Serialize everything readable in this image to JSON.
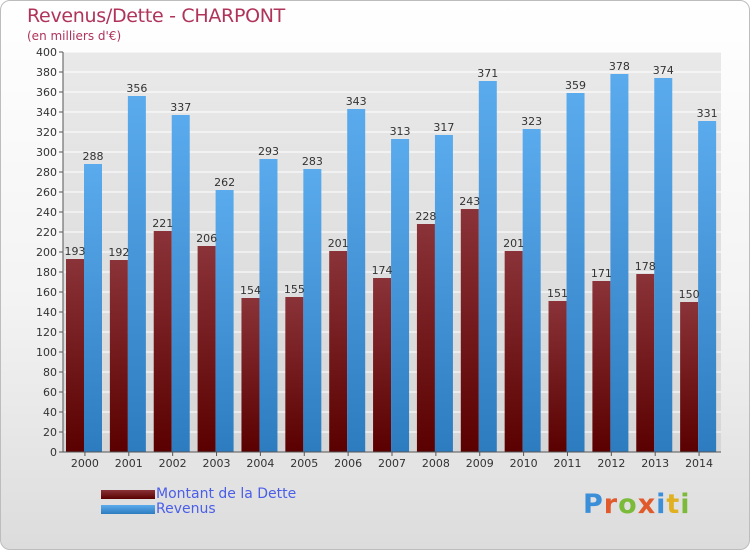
{
  "colors": {
    "title": "#b0335a",
    "legend_text": "#4a5ee8",
    "dette_top": "#8a3338",
    "dette_bottom": "#5a0000",
    "revenus_top": "#5aabed",
    "revenus_bottom": "#2e7cc0",
    "grid": "#ffffff",
    "logo": [
      "#3b8ed8",
      "#e05a2b",
      "#7cba3a",
      "#e05a2b",
      "#3b8ed8",
      "#e0b020",
      "#7cba3a"
    ]
  },
  "logo": {
    "text": "Proxiti"
  },
  "chart_data": {
    "type": "bar",
    "title": "Revenus/Dette - CHARPONT",
    "subtitle": "(en milliers d'€)",
    "xlabel": "",
    "ylabel": "",
    "categories": [
      "2000",
      "2001",
      "2002",
      "2003",
      "2004",
      "2005",
      "2006",
      "2007",
      "2008",
      "2009",
      "2010",
      "2011",
      "2012",
      "2013",
      "2014"
    ],
    "series": [
      {
        "name": "Montant de la Dette",
        "values": [
          193,
          192,
          221,
          206,
          154,
          155,
          201,
          174,
          228,
          243,
          201,
          151,
          171,
          178,
          150
        ]
      },
      {
        "name": "Revenus",
        "values": [
          288,
          356,
          337,
          262,
          293,
          283,
          343,
          313,
          317,
          371,
          323,
          359,
          378,
          374,
          331
        ]
      }
    ],
    "ylim": [
      0,
      400
    ],
    "ytick_step": 20,
    "grid": true,
    "legend_position": "bottom-left"
  }
}
